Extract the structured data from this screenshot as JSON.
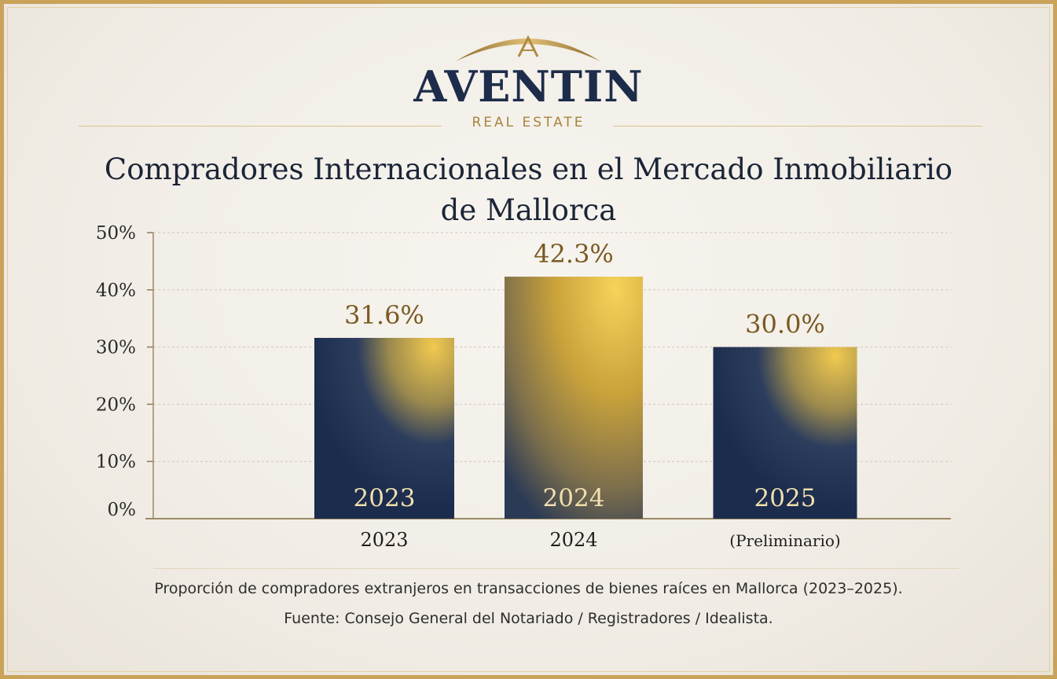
{
  "brand": {
    "name": "AVENTIN",
    "tagline": "REAL ESTATE"
  },
  "colors": {
    "navy": "#1d2c4a",
    "gold": "#c9a35a",
    "label_gold": "#7a5a22"
  },
  "chart_data": {
    "type": "bar",
    "title": "Compradores Internacionales en el Mercado Inmobiliario de Mallorca",
    "title_lines": [
      "Compradores Internacionales en el Mercado Inmobiliario",
      "de Mallorca"
    ],
    "categories": [
      "2023",
      "2024",
      "2025"
    ],
    "bar_labels": [
      "2023",
      "2024",
      "2025"
    ],
    "x_tick_labels": [
      "2023",
      "2024",
      "(Preliminario)"
    ],
    "values": [
      31.6,
      42.3,
      30.0
    ],
    "value_labels": [
      "31.6%",
      "42.3%",
      "30.0%"
    ],
    "ylim": [
      0,
      50
    ],
    "y_ticks": [
      0,
      10,
      20,
      30,
      40,
      50
    ],
    "y_tick_labels": [
      "0%",
      "10%",
      "20%",
      "30%",
      "40%",
      "50%"
    ],
    "grid": true,
    "xlabel": "",
    "ylabel": ""
  },
  "caption": {
    "description": "Proporción de compradores extranjeros en transacciones de bienes raíces en Mallorca (2023–2025).",
    "source": "Fuente: Consejo General del Notariado / Registradores / Idealista."
  }
}
